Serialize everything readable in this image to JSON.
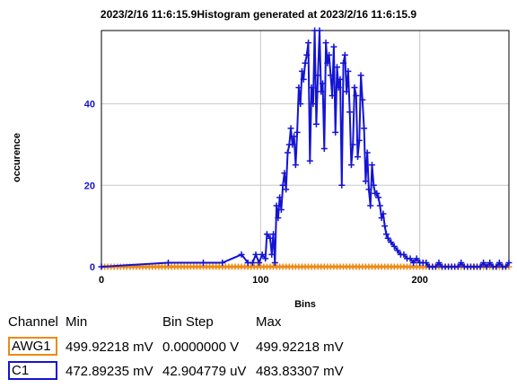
{
  "chart_data": {
    "type": "line",
    "title": "2023/2/16 11:6:15.9Histogram generated at 2023/2/16 11:6:15.9",
    "xlabel": "Bins",
    "ylabel": "occurence",
    "xlim": [
      0,
      256
    ],
    "ylim": [
      0,
      58
    ],
    "xticks": [
      "0",
      "100",
      "200"
    ],
    "yticks": [
      "0",
      "20",
      "40"
    ],
    "grid": true,
    "series": [
      {
        "name": "AWG1",
        "color": "#ee8a14",
        "x": [
          0,
          2,
          4,
          6,
          8,
          10,
          12,
          14,
          16,
          18,
          20,
          22,
          24,
          26,
          28,
          30,
          32,
          34,
          36,
          38,
          40,
          42,
          44,
          46,
          48,
          50,
          52,
          54,
          56,
          58,
          60,
          62,
          64,
          66,
          68,
          70,
          72,
          74,
          76,
          78,
          80,
          82,
          84,
          86,
          88,
          90,
          92,
          94,
          96,
          98,
          100,
          102,
          104,
          106,
          108,
          110,
          112,
          114,
          116,
          118,
          120,
          122,
          124,
          126,
          128,
          130,
          132,
          134,
          136,
          138,
          140,
          142,
          144,
          146,
          148,
          150,
          152,
          154,
          156,
          158,
          160,
          162,
          164,
          166,
          168,
          170,
          172,
          174,
          176,
          178,
          180,
          182,
          184,
          186,
          188,
          190,
          192,
          194,
          196,
          198,
          200,
          202,
          204,
          206,
          208,
          210,
          212,
          214,
          216,
          218,
          220,
          222,
          224,
          226,
          228,
          230,
          232,
          234,
          236,
          238,
          240,
          242,
          244,
          246,
          248,
          250,
          252,
          254,
          256
        ],
        "y": [
          0,
          0,
          0,
          0,
          0,
          0,
          0,
          0,
          0,
          0,
          0,
          0,
          0,
          0,
          0,
          0,
          0,
          0,
          0,
          0,
          0,
          0,
          0,
          0,
          0,
          0,
          0,
          0,
          0,
          0,
          0,
          0,
          0,
          0,
          0,
          0,
          0,
          0,
          0,
          0,
          0,
          0,
          0,
          0,
          0,
          0,
          0,
          0,
          0,
          0,
          0,
          0,
          0,
          0,
          0,
          0,
          0,
          0,
          0,
          0,
          0,
          0,
          0,
          0,
          0,
          0,
          0,
          0,
          0,
          0,
          0,
          0,
          0,
          0,
          0,
          0,
          0,
          0,
          0,
          0,
          0,
          0,
          0,
          0,
          0,
          0,
          0,
          0,
          0,
          0,
          0,
          0,
          0,
          0,
          0,
          0,
          0,
          0,
          0,
          0,
          0,
          0,
          0,
          0,
          0,
          0,
          0,
          0,
          0,
          0,
          0,
          0,
          0,
          0,
          0,
          0,
          0,
          0,
          0,
          0,
          0,
          0,
          0,
          0,
          0,
          0,
          0,
          0,
          0
        ]
      },
      {
        "name": "C1",
        "color": "#1414d2",
        "x": [
          0,
          42,
          64,
          76,
          88,
          92,
          95,
          97,
          99,
          101,
          103,
          104,
          106,
          107,
          108,
          109,
          110,
          111,
          112,
          113,
          114,
          115,
          116,
          117,
          118,
          119,
          120,
          121,
          122,
          123,
          124,
          125,
          126,
          127,
          128,
          129,
          130,
          131,
          132,
          133,
          134,
          135,
          136,
          137,
          138,
          139,
          140,
          141,
          142,
          143,
          144,
          145,
          146,
          147,
          148,
          149,
          150,
          151,
          152,
          153,
          154,
          155,
          156,
          157,
          158,
          159,
          160,
          161,
          162,
          163,
          164,
          165,
          166,
          167,
          168,
          169,
          170,
          171,
          172,
          173,
          174,
          175,
          176,
          177,
          178,
          179,
          180,
          182,
          184,
          186,
          188,
          190,
          192,
          194,
          196,
          198,
          200,
          202,
          204,
          206,
          208,
          210,
          212,
          214,
          216,
          218,
          220,
          222,
          224,
          226,
          228,
          230,
          232,
          234,
          236,
          238,
          240,
          242,
          244,
          246,
          248,
          250,
          252,
          254,
          256
        ],
        "y": [
          0,
          1,
          1,
          1,
          3,
          1,
          1,
          3,
          1,
          3,
          2,
          8,
          7,
          3,
          8,
          1,
          15,
          12,
          17,
          14,
          20,
          23,
          19,
          28,
          30,
          34,
          30,
          32,
          25,
          33,
          44,
          40,
          48,
          46,
          50,
          52,
          55,
          26,
          44,
          40,
          58,
          35,
          47,
          58,
          43,
          45,
          29,
          55,
          50,
          52,
          47,
          42,
          54,
          33,
          49,
          44,
          46,
          20,
          50,
          52,
          43,
          48,
          38,
          25,
          30,
          44,
          42,
          27,
          31,
          47,
          41,
          34,
          21,
          28,
          19,
          15,
          25,
          20,
          18,
          18,
          17,
          15,
          12,
          13,
          10,
          8,
          7,
          6,
          5,
          4,
          3,
          3,
          2,
          2,
          1,
          2,
          1,
          1,
          1,
          0,
          0,
          0,
          1,
          0,
          0,
          0,
          0,
          0,
          0,
          1,
          0,
          0,
          0,
          0,
          0,
          0,
          1,
          0,
          1,
          0,
          0,
          1,
          0,
          0,
          1
        ]
      }
    ]
  },
  "table": {
    "headers": {
      "channel": "Channel",
      "min": "Min",
      "binstep": "Bin Step",
      "max": "Max"
    },
    "rows": [
      {
        "channel": "AWG1",
        "min": "499.92218 mV",
        "binstep": "0.0000000 V",
        "max": "499.92218 mV",
        "color": "#ee8a14"
      },
      {
        "channel": "C1",
        "min": "472.89235 mV",
        "binstep": "42.904779 uV",
        "max": "483.83307 mV",
        "color": "#1414d2"
      }
    ]
  }
}
